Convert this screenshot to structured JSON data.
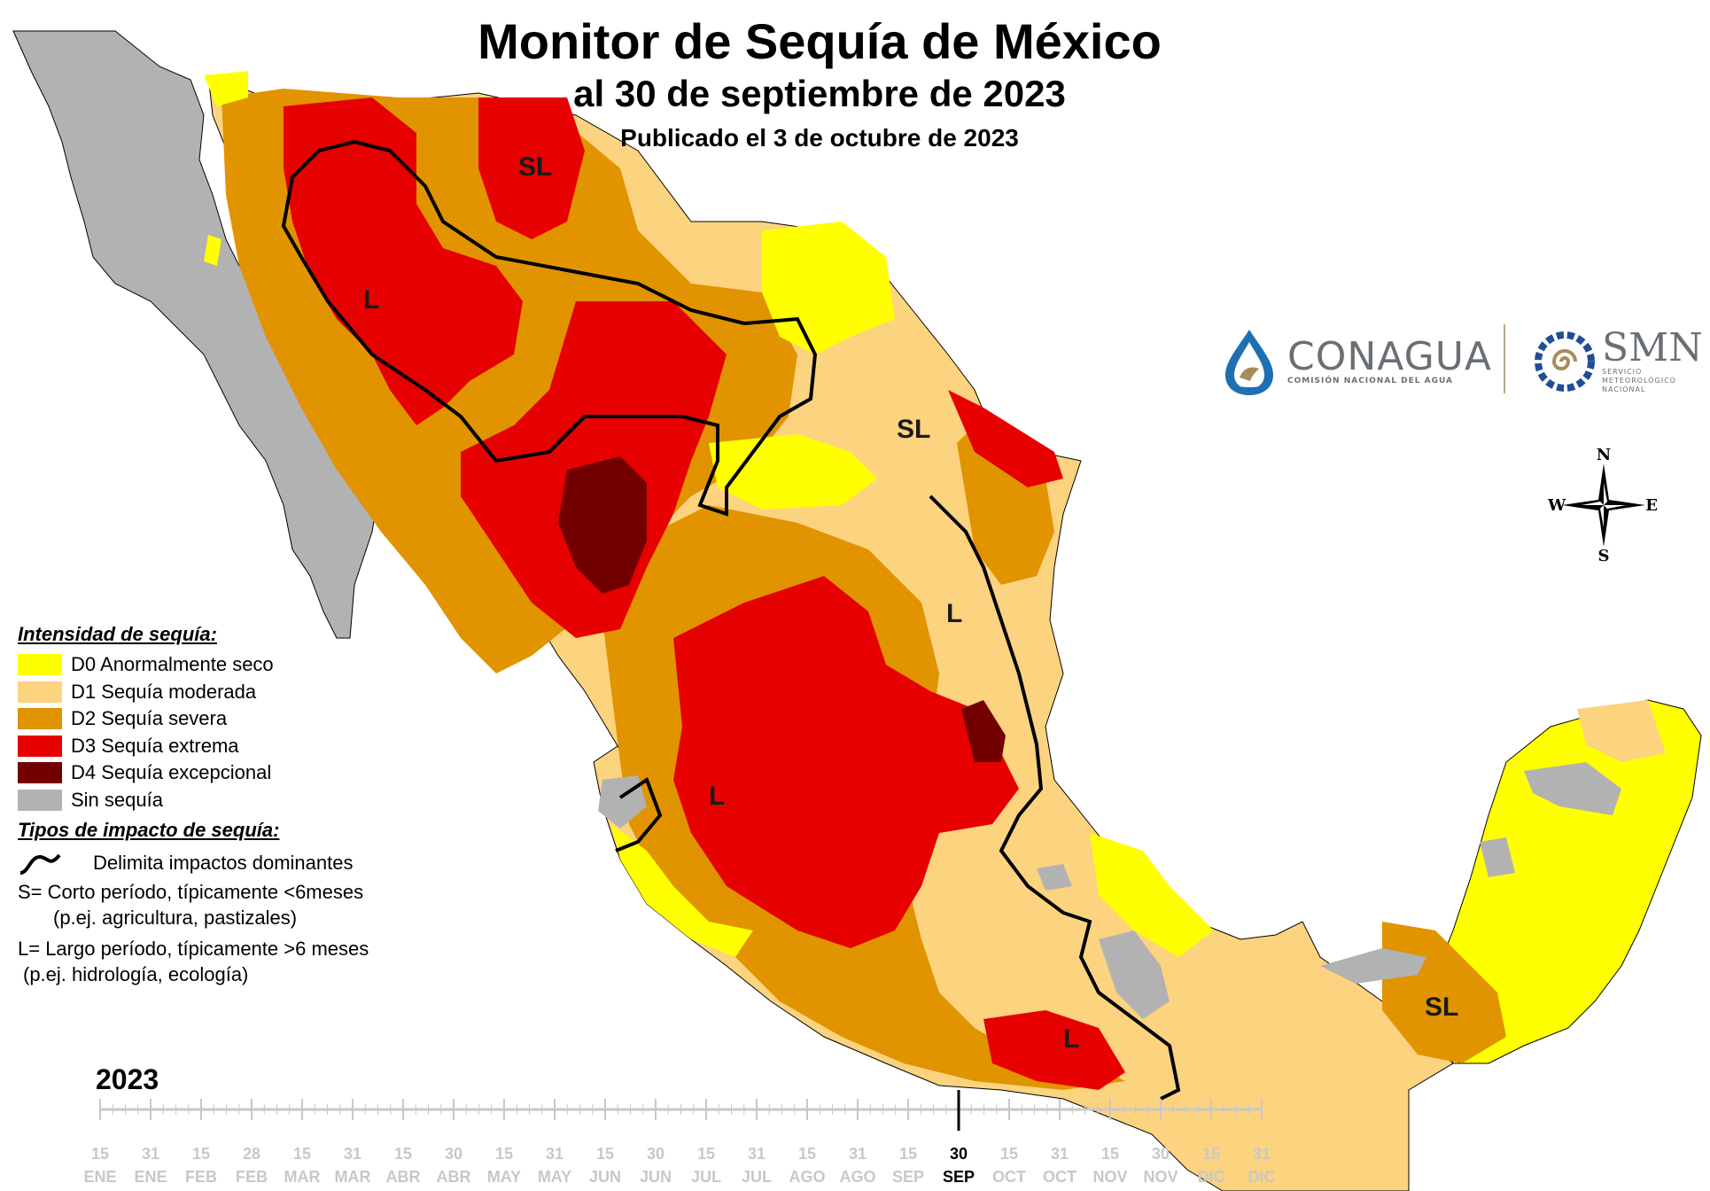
{
  "header": {
    "title": "Monitor de Sequía de México",
    "subtitle": "al 30 de septiembre de 2023",
    "published": "Publicado el 3 de octubre de 2023"
  },
  "legend": {
    "intensity_heading": "Intensidad de sequía:",
    "categories": [
      {
        "code": "D0",
        "label": "D0 Anormalmente seco",
        "color": "#ffff00"
      },
      {
        "code": "D1",
        "label": "D1 Sequía moderada",
        "color": "#fcd37f"
      },
      {
        "code": "D2",
        "label": "D2 Sequía severa",
        "color": "#e19300"
      },
      {
        "code": "D3",
        "label": "D3 Sequía extrema",
        "color": "#e60000"
      },
      {
        "code": "D4",
        "label": "D4 Sequía excepcional",
        "color": "#730000"
      },
      {
        "code": "none",
        "label": "Sin sequía",
        "color": "#b2b2b2"
      }
    ],
    "impact_heading": "Tipos de impacto de sequía:",
    "impact_line_label": "Delimita impactos dominantes",
    "impact_s_line1": "S= Corto período, típicamente <6meses",
    "impact_s_line2": "(p.ej. agricultura, pastizales)",
    "impact_l_line1": "L= Largo período, típicamente >6 meses",
    "impact_l_line2": "(p.ej. hidrología, ecología)"
  },
  "map_labels": [
    "SL",
    "L",
    "SL",
    "L",
    "L",
    "L",
    "SL"
  ],
  "logos": {
    "conagua_name": "CONAGUA",
    "conagua_subtitle": "COMISIÓN NACIONAL DEL AGUA",
    "smn_name": "SMN",
    "smn_subtitle_1": "SERVICIO",
    "smn_subtitle_2": "METEOROLÓGICO",
    "smn_subtitle_3": "NACIONAL"
  },
  "compass": {
    "n": "N",
    "s": "S",
    "e": "E",
    "w": "W"
  },
  "timeline": {
    "year": "2023",
    "current_index": 17,
    "ticks": [
      {
        "day": "15",
        "month": "ENE"
      },
      {
        "day": "31",
        "month": "ENE"
      },
      {
        "day": "15",
        "month": "FEB"
      },
      {
        "day": "28",
        "month": "FEB"
      },
      {
        "day": "15",
        "month": "MAR"
      },
      {
        "day": "31",
        "month": "MAR"
      },
      {
        "day": "15",
        "month": "ABR"
      },
      {
        "day": "30",
        "month": "ABR"
      },
      {
        "day": "15",
        "month": "MAY"
      },
      {
        "day": "31",
        "month": "MAY"
      },
      {
        "day": "15",
        "month": "JUN"
      },
      {
        "day": "30",
        "month": "JUN"
      },
      {
        "day": "15",
        "month": "JUL"
      },
      {
        "day": "31",
        "month": "JUL"
      },
      {
        "day": "15",
        "month": "AGO"
      },
      {
        "day": "31",
        "month": "AGO"
      },
      {
        "day": "15",
        "month": "SEP"
      },
      {
        "day": "30",
        "month": "SEP"
      },
      {
        "day": "15",
        "month": "OCT"
      },
      {
        "day": "31",
        "month": "OCT"
      },
      {
        "day": "15",
        "month": "NOV"
      },
      {
        "day": "30",
        "month": "NOV"
      },
      {
        "day": "15",
        "month": "DIC"
      },
      {
        "day": "31",
        "month": "DIC"
      }
    ],
    "inactive_color": "#c8c8c8",
    "active_color": "#000000"
  }
}
